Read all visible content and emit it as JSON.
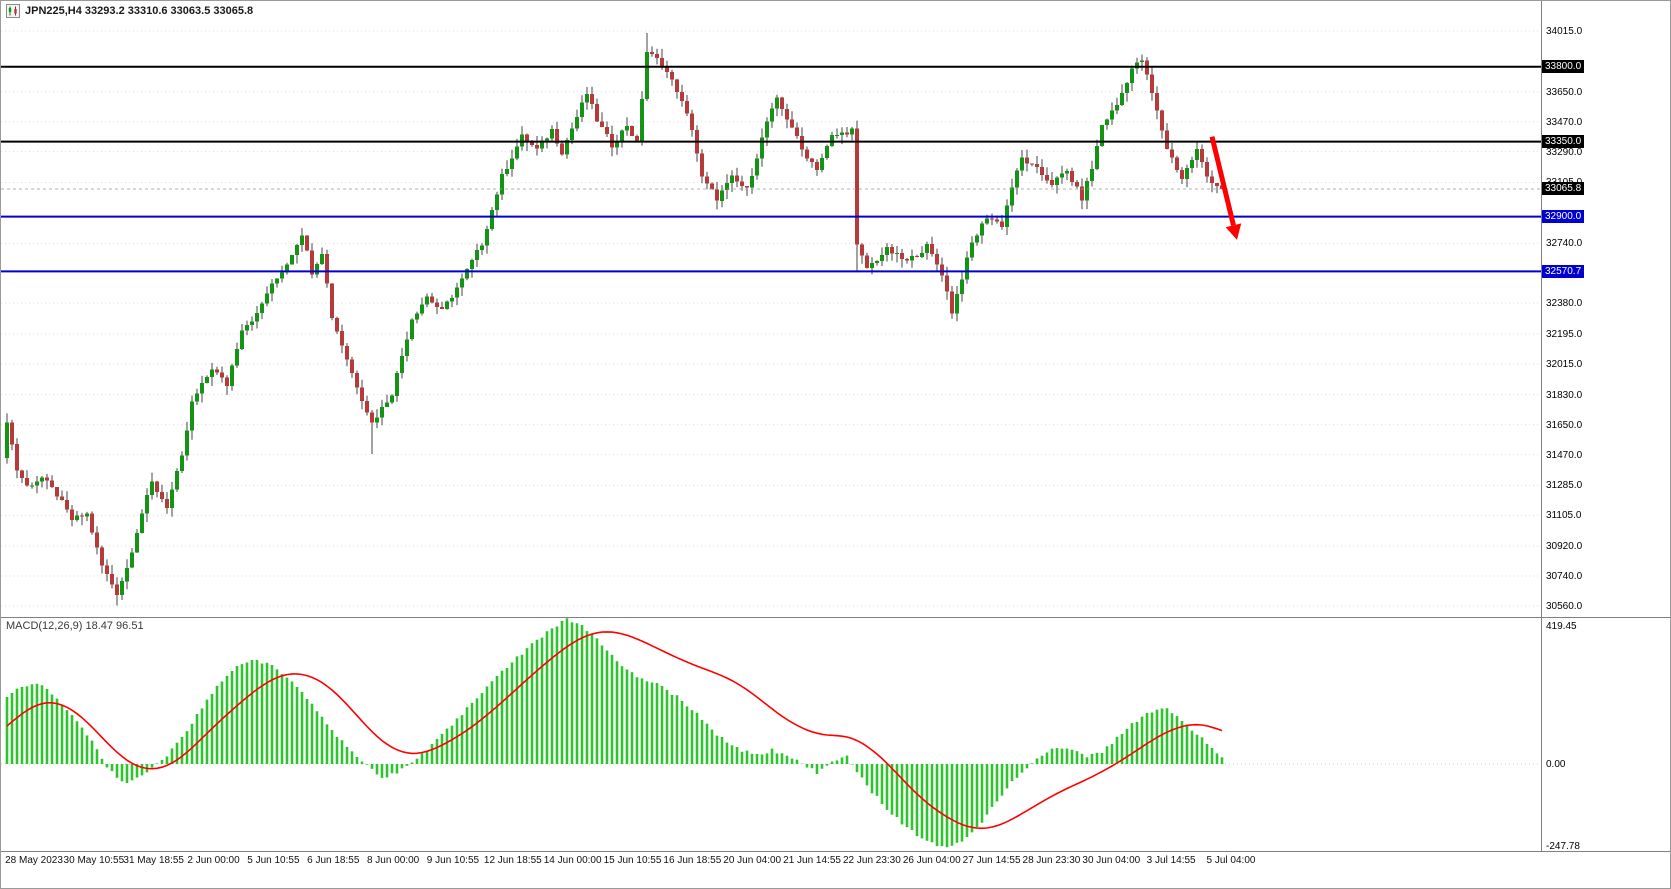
{
  "header": {
    "title": "JPN225,H4  33293.2 33310.6 33063.5 33065.8",
    "symbol": "JPN225",
    "timeframe": "H4",
    "open": "33293.2",
    "high": "33310.6",
    "low": "33063.5",
    "close": "33065.8"
  },
  "macd": {
    "label": "MACD(12,26,9) 18.47 96.51",
    "name": "MACD",
    "params": "12,26,9",
    "macd_value": "18.47",
    "signal_value": "96.51",
    "axis_ticks": [
      "419.45",
      "0.00",
      "-247.78"
    ]
  },
  "colors": {
    "background": "#FFFFFF",
    "bull": "#149414",
    "bear": "#B73A3A",
    "wick": "#444444",
    "macd_histogram": "#2FC42F",
    "macd_signal": "#FF0000",
    "grid": "#DEDEDE",
    "level_black": "#000000",
    "level_blue": "#0000D0",
    "arrow": "#FF0000",
    "divider": "#808080"
  },
  "price_axis": {
    "ticks": [
      34015.0,
      33650.0,
      33470.0,
      33290.0,
      33105.0,
      32740.0,
      32380.0,
      32195.0,
      32015.0,
      31830.0,
      31650.0,
      31470.0,
      31285.0,
      31105.0,
      30920.0,
      30740.0,
      30560.0
    ]
  },
  "levels": [
    {
      "price": 33800.0,
      "label": "33800.0",
      "line_color": "#000000",
      "label_bg": "#000000",
      "width": 2
    },
    {
      "price": 33350.0,
      "label": "33350.0",
      "line_color": "#000000",
      "label_bg": "#000000",
      "width": 2
    },
    {
      "price": 32900.0,
      "label": "32900.0",
      "line_color": "#0000D0",
      "label_bg": "#0000D0",
      "width": 2
    },
    {
      "price": 32570.7,
      "label": "32570.7",
      "line_color": "#0000D0",
      "label_bg": "#0000D0",
      "width": 2
    }
  ],
  "current_price": {
    "value": 33065.8,
    "label": "33065.8",
    "label_bg": "#000000"
  },
  "time_axis": {
    "labels": [
      "28 May 2023",
      "30 May 10:55",
      "31 May 18:55",
      "2 Jun 00:00",
      "5 Jun 10:55",
      "6 Jun 18:55",
      "8 Jun 00:00",
      "9 Jun 10:55",
      "12 Jun 18:55",
      "14 Jun 00:00",
      "15 Jun 10:55",
      "16 Jun 18:55",
      "20 Jun 04:00",
      "21 Jun 14:55",
      "22 Jun 23:30",
      "26 Jun 04:00",
      "27 Jun 14:55",
      "28 Jun 23:30",
      "30 Jun 04:00",
      "3 Jul 14:55",
      "5 Jul 04:00"
    ]
  },
  "annotations": {
    "arrow": {
      "from_index": 241,
      "from_price": 33380,
      "to_index": 246,
      "to_price": 32760,
      "color": "#FF0000"
    }
  },
  "chart_data": {
    "type": "candlestick_with_macd",
    "symbol": "JPN225",
    "timeframe": "H4",
    "ohlc_current": {
      "open": 33293.2,
      "high": 33310.6,
      "low": 33063.5,
      "close": 33065.8
    },
    "price_axis_range": {
      "top": 34015.0,
      "bottom": 30560.0
    },
    "candle_count": 244,
    "first_open": 31450,
    "last_close": 33065.8,
    "noise": 36,
    "wick": 55,
    "price_keypoints": [
      [
        0,
        31680
      ],
      [
        2,
        31380
      ],
      [
        4,
        31280
      ],
      [
        7,
        31330
      ],
      [
        10,
        31230
      ],
      [
        13,
        31080
      ],
      [
        16,
        31110
      ],
      [
        19,
        30800
      ],
      [
        22,
        30640
      ],
      [
        24,
        30790
      ],
      [
        27,
        31120
      ],
      [
        29,
        31300
      ],
      [
        32,
        31160
      ],
      [
        35,
        31450
      ],
      [
        37,
        31780
      ],
      [
        41,
        31990
      ],
      [
        44,
        31890
      ],
      [
        47,
        32230
      ],
      [
        50,
        32310
      ],
      [
        52,
        32440
      ],
      [
        56,
        32620
      ],
      [
        59,
        32800
      ],
      [
        61,
        32570
      ],
      [
        63,
        32690
      ],
      [
        65,
        32300
      ],
      [
        69,
        31960
      ],
      [
        73,
        31660
      ],
      [
        77,
        31840
      ],
      [
        81,
        32290
      ],
      [
        84,
        32420
      ],
      [
        87,
        32330
      ],
      [
        91,
        32520
      ],
      [
        95,
        32740
      ],
      [
        99,
        33140
      ],
      [
        103,
        33380
      ],
      [
        106,
        33300
      ],
      [
        109,
        33420
      ],
      [
        111,
        33290
      ],
      [
        114,
        33500
      ],
      [
        116,
        33640
      ],
      [
        118,
        33480
      ],
      [
        121,
        33330
      ],
      [
        124,
        33450
      ],
      [
        126,
        33340
      ],
      [
        128,
        33890
      ],
      [
        131,
        33820
      ],
      [
        134,
        33660
      ],
      [
        137,
        33430
      ],
      [
        139,
        33130
      ],
      [
        142,
        33010
      ],
      [
        145,
        33130
      ],
      [
        148,
        33060
      ],
      [
        152,
        33470
      ],
      [
        154,
        33600
      ],
      [
        157,
        33440
      ],
      [
        159,
        33300
      ],
      [
        162,
        33190
      ],
      [
        165,
        33380
      ],
      [
        169,
        33420
      ],
      [
        170,
        32720
      ],
      [
        172,
        32590
      ],
      [
        176,
        32700
      ],
      [
        180,
        32630
      ],
      [
        184,
        32720
      ],
      [
        187,
        32560
      ],
      [
        189,
        32330
      ],
      [
        193,
        32740
      ],
      [
        196,
        32900
      ],
      [
        199,
        32850
      ],
      [
        201,
        33080
      ],
      [
        203,
        33250
      ],
      [
        206,
        33180
      ],
      [
        209,
        33100
      ],
      [
        212,
        33170
      ],
      [
        215,
        33010
      ],
      [
        217,
        33190
      ],
      [
        219,
        33450
      ],
      [
        222,
        33570
      ],
      [
        225,
        33790
      ],
      [
        227,
        33840
      ],
      [
        229,
        33640
      ],
      [
        232,
        33310
      ],
      [
        235,
        33130
      ],
      [
        238,
        33300
      ],
      [
        240,
        33140
      ],
      [
        243,
        33065.8
      ]
    ],
    "wick_extremes": [
      {
        "index": 22,
        "low": 30563
      },
      {
        "index": 73,
        "low": 31473
      },
      {
        "index": 128,
        "high": 34003
      },
      {
        "index": 170,
        "low": 32566
      },
      {
        "index": 227,
        "high": 33874
      }
    ],
    "macd": {
      "params": "12,26,9",
      "current_macd": 18.47,
      "current_signal": 96.51,
      "axis_max": 419.45,
      "axis_min": -247.78,
      "histogram_keypoints": [
        [
          0,
          195
        ],
        [
          3,
          225
        ],
        [
          6,
          235
        ],
        [
          9,
          205
        ],
        [
          12,
          160
        ],
        [
          15,
          110
        ],
        [
          18,
          40
        ],
        [
          20,
          -10
        ],
        [
          23,
          -55
        ],
        [
          26,
          -40
        ],
        [
          29,
          -10
        ],
        [
          32,
          25
        ],
        [
          35,
          80
        ],
        [
          38,
          140
        ],
        [
          42,
          225
        ],
        [
          46,
          285
        ],
        [
          49,
          300
        ],
        [
          53,
          285
        ],
        [
          57,
          240
        ],
        [
          61,
          170
        ],
        [
          65,
          95
        ],
        [
          69,
          35
        ],
        [
          72,
          -5
        ],
        [
          75,
          -40
        ],
        [
          78,
          -25
        ],
        [
          81,
          5
        ],
        [
          85,
          55
        ],
        [
          89,
          115
        ],
        [
          93,
          175
        ],
        [
          97,
          235
        ],
        [
          101,
          295
        ],
        [
          105,
          345
        ],
        [
          109,
          395
        ],
        [
          112,
          418
        ],
        [
          115,
          400
        ],
        [
          118,
          360
        ],
        [
          122,
          300
        ],
        [
          126,
          250
        ],
        [
          130,
          230
        ],
        [
          134,
          195
        ],
        [
          138,
          145
        ],
        [
          142,
          85
        ],
        [
          146,
          45
        ],
        [
          150,
          25
        ],
        [
          153,
          40
        ],
        [
          156,
          25
        ],
        [
          159,
          0
        ],
        [
          162,
          -25
        ],
        [
          164,
          -5
        ],
        [
          166,
          15
        ],
        [
          168,
          25
        ],
        [
          170,
          -20
        ],
        [
          173,
          -80
        ],
        [
          177,
          -145
        ],
        [
          181,
          -195
        ],
        [
          185,
          -230
        ],
        [
          188,
          -243
        ],
        [
          192,
          -215
        ],
        [
          195,
          -165
        ],
        [
          198,
          -105
        ],
        [
          201,
          -50
        ],
        [
          204,
          -10
        ],
        [
          207,
          25
        ],
        [
          210,
          50
        ],
        [
          213,
          40
        ],
        [
          216,
          20
        ],
        [
          219,
          35
        ],
        [
          222,
          75
        ],
        [
          225,
          115
        ],
        [
          228,
          145
        ],
        [
          231,
          165
        ],
        [
          234,
          140
        ],
        [
          237,
          100
        ],
        [
          240,
          60
        ],
        [
          243,
          18.47
        ]
      ],
      "signal_keypoints": [
        [
          0,
          110
        ],
        [
          4,
          160
        ],
        [
          8,
          185
        ],
        [
          12,
          170
        ],
        [
          16,
          125
        ],
        [
          20,
          60
        ],
        [
          24,
          5
        ],
        [
          28,
          -20
        ],
        [
          32,
          -10
        ],
        [
          36,
          30
        ],
        [
          40,
          90
        ],
        [
          46,
          170
        ],
        [
          52,
          240
        ],
        [
          57,
          268
        ],
        [
          62,
          250
        ],
        [
          66,
          205
        ],
        [
          70,
          140
        ],
        [
          74,
          75
        ],
        [
          78,
          35
        ],
        [
          82,
          25
        ],
        [
          86,
          45
        ],
        [
          92,
          95
        ],
        [
          98,
          165
        ],
        [
          104,
          245
        ],
        [
          110,
          320
        ],
        [
          115,
          370
        ],
        [
          120,
          388
        ],
        [
          125,
          370
        ],
        [
          130,
          335
        ],
        [
          135,
          300
        ],
        [
          140,
          272
        ],
        [
          145,
          245
        ],
        [
          150,
          195
        ],
        [
          155,
          135
        ],
        [
          160,
          95
        ],
        [
          164,
          80
        ],
        [
          168,
          85
        ],
        [
          172,
          55
        ],
        [
          176,
          5
        ],
        [
          180,
          -60
        ],
        [
          184,
          -115
        ],
        [
          188,
          -155
        ],
        [
          192,
          -185
        ],
        [
          196,
          -190
        ],
        [
          200,
          -170
        ],
        [
          204,
          -135
        ],
        [
          208,
          -100
        ],
        [
          212,
          -70
        ],
        [
          216,
          -45
        ],
        [
          220,
          -15
        ],
        [
          224,
          20
        ],
        [
          228,
          60
        ],
        [
          232,
          95
        ],
        [
          236,
          115
        ],
        [
          239,
          118
        ],
        [
          243,
          96.51
        ]
      ]
    }
  }
}
